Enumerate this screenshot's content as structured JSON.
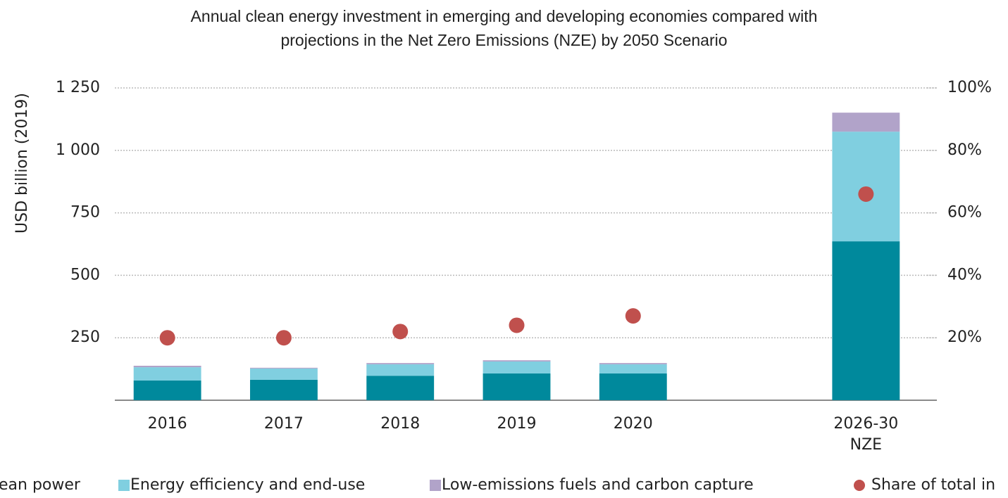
{
  "chart_data": {
    "type": "bar",
    "stacked": true,
    "title": "Annual clean energy investment in emerging and developing economies compared with\nprojections in the Net Zero Emissions (NZE) by 2050 Scenario",
    "ylabel": "USD billion (2019)",
    "categories": [
      "2016",
      "2017",
      "2018",
      "2019",
      "2020",
      null,
      "2026-30\nNZE"
    ],
    "series": [
      {
        "name": "ean power",
        "color": "#00899c",
        "values": [
          79,
          82,
          98,
          107,
          107,
          null,
          636
        ]
      },
      {
        "name": "Energy efficiency and end-use",
        "color": "#80cfe0",
        "values": [
          53,
          45,
          46,
          48,
          37,
          null,
          439
        ]
      },
      {
        "name": "Low-emissions fuels and carbon capture",
        "color": "#b1a3c9",
        "values": [
          6,
          3,
          5,
          5,
          5,
          null,
          76
        ]
      },
      {
        "name": "Share of total in",
        "color": "#c0504d",
        "axis": "y2",
        "values": [
          20,
          20,
          22,
          24,
          27,
          null,
          66
        ]
      }
    ],
    "ylim": [
      0,
      1250
    ],
    "yticks": [
      250,
      500,
      750,
      {
        "value": 1000,
        "label": "1 000"
      },
      {
        "value": 1250,
        "label": "1 250"
      }
    ],
    "y2lim": [
      0,
      100
    ],
    "y2ticks": [
      {
        "value": 20,
        "label": "20%"
      },
      {
        "value": 40,
        "label": "40%"
      },
      {
        "value": 60,
        "label": "60%"
      },
      {
        "value": 80,
        "label": "80%"
      },
      {
        "value": 100,
        "label": "100%"
      }
    ],
    "grid": true,
    "legend": "bottom"
  }
}
